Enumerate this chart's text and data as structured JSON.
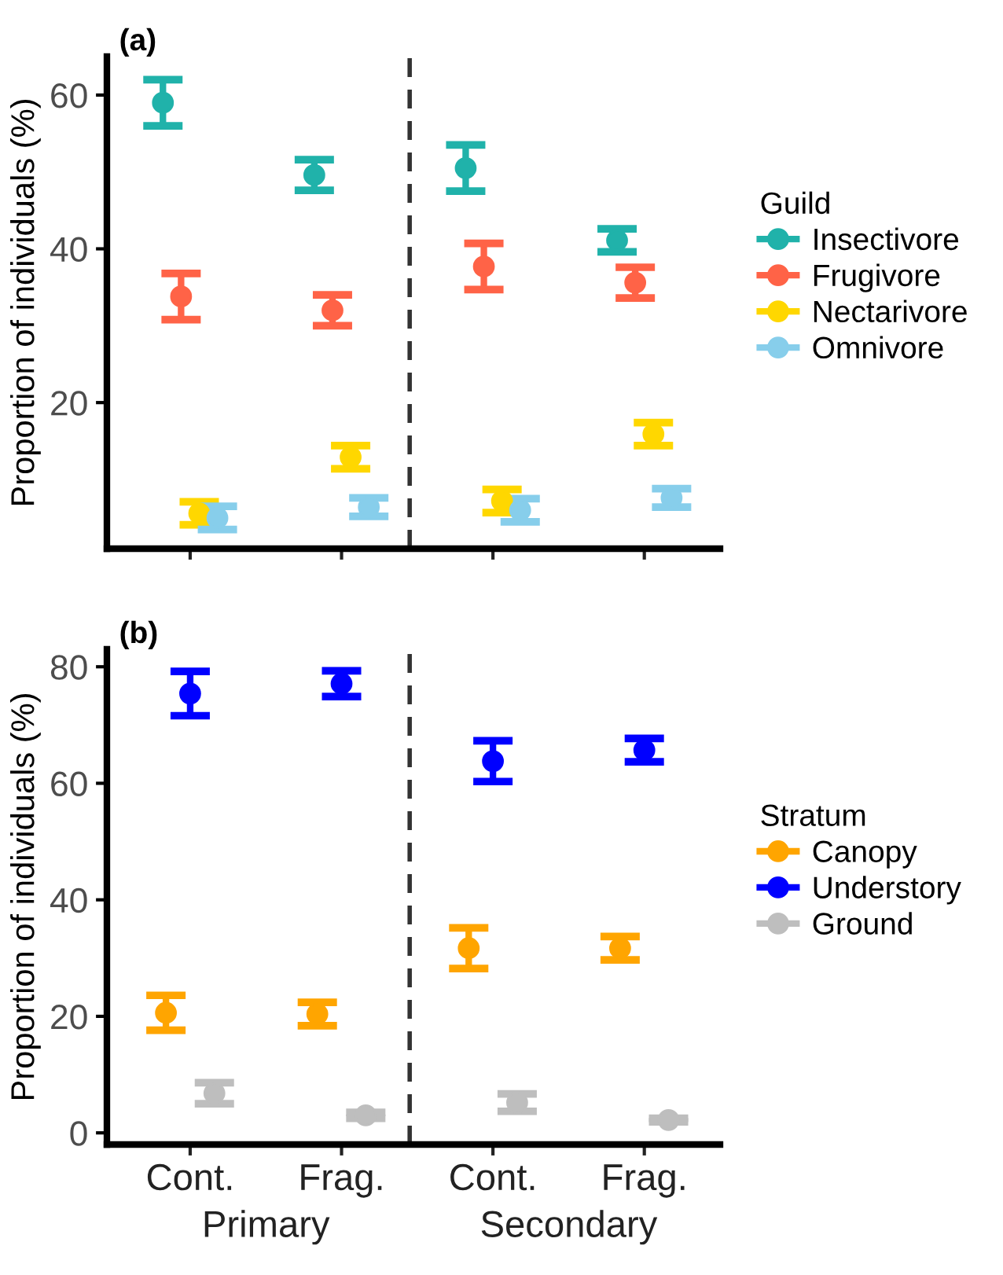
{
  "chart_data": [
    {
      "type": "scatter",
      "title": "(a)",
      "ylabel": "Proportion of individuals (%)",
      "legend_title": "Guild",
      "legend": "right",
      "marker": "circle",
      "grid": false,
      "tick_labels": "y",
      "categories": [
        null,
        null,
        null,
        null
      ],
      "ylim": [
        1,
        65
      ],
      "yticks": [
        20,
        40,
        60
      ],
      "series": [
        {
          "name": "Insectivore",
          "color": "#20b2aa",
          "values": [
            59.0,
            49.6,
            50.5,
            41.1
          ],
          "errors": [
            3,
            2,
            3,
            1.5
          ]
        },
        {
          "name": "Frugivore",
          "color": "#ff6347",
          "values": [
            33.8,
            32.0,
            37.7,
            35.6
          ],
          "errors": [
            3,
            2,
            3,
            2
          ]
        },
        {
          "name": "Nectarivore",
          "color": "#ffd700",
          "values": [
            5.6,
            12.9,
            7.2,
            15.9
          ],
          "errors": [
            1.5,
            1.5,
            1.5,
            1.5
          ]
        },
        {
          "name": "Omnivore",
          "color": "#87ceeb",
          "values": [
            5.0,
            6.4,
            6.0,
            7.6
          ],
          "errors": [
            1.5,
            1.2,
            1.5,
            1.2
          ]
        }
      ]
    },
    {
      "type": "scatter",
      "title": "(b)",
      "ylabel": "Proportion of individuals (%)",
      "legend_title": "Stratum",
      "legend": "right",
      "marker": "circle",
      "grid": false,
      "categories": [
        "Cont.",
        "Frag.",
        "Cont.",
        "Frag."
      ],
      "ylim": [
        -2,
        83
      ],
      "yticks": [
        0,
        20,
        40,
        60,
        80
      ],
      "annotations": [
        "Primary",
        "Secondary"
      ],
      "series": [
        {
          "name": "Canopy",
          "color": "#ffa500",
          "values": [
            20.6,
            20.4,
            31.7,
            31.7
          ],
          "errors": [
            3,
            2,
            3.5,
            2
          ]
        },
        {
          "name": "Understory",
          "color": "#0000ff",
          "values": [
            75.4,
            77.1,
            63.8,
            65.7
          ],
          "errors": [
            3.8,
            2.2,
            3.5,
            2
          ]
        },
        {
          "name": "Ground",
          "color": "#bebebe",
          "values": [
            6.8,
            3.0,
            5.2,
            2.2
          ],
          "errors": [
            1.8,
            0.5,
            1.5,
            0.3
          ]
        }
      ]
    }
  ]
}
